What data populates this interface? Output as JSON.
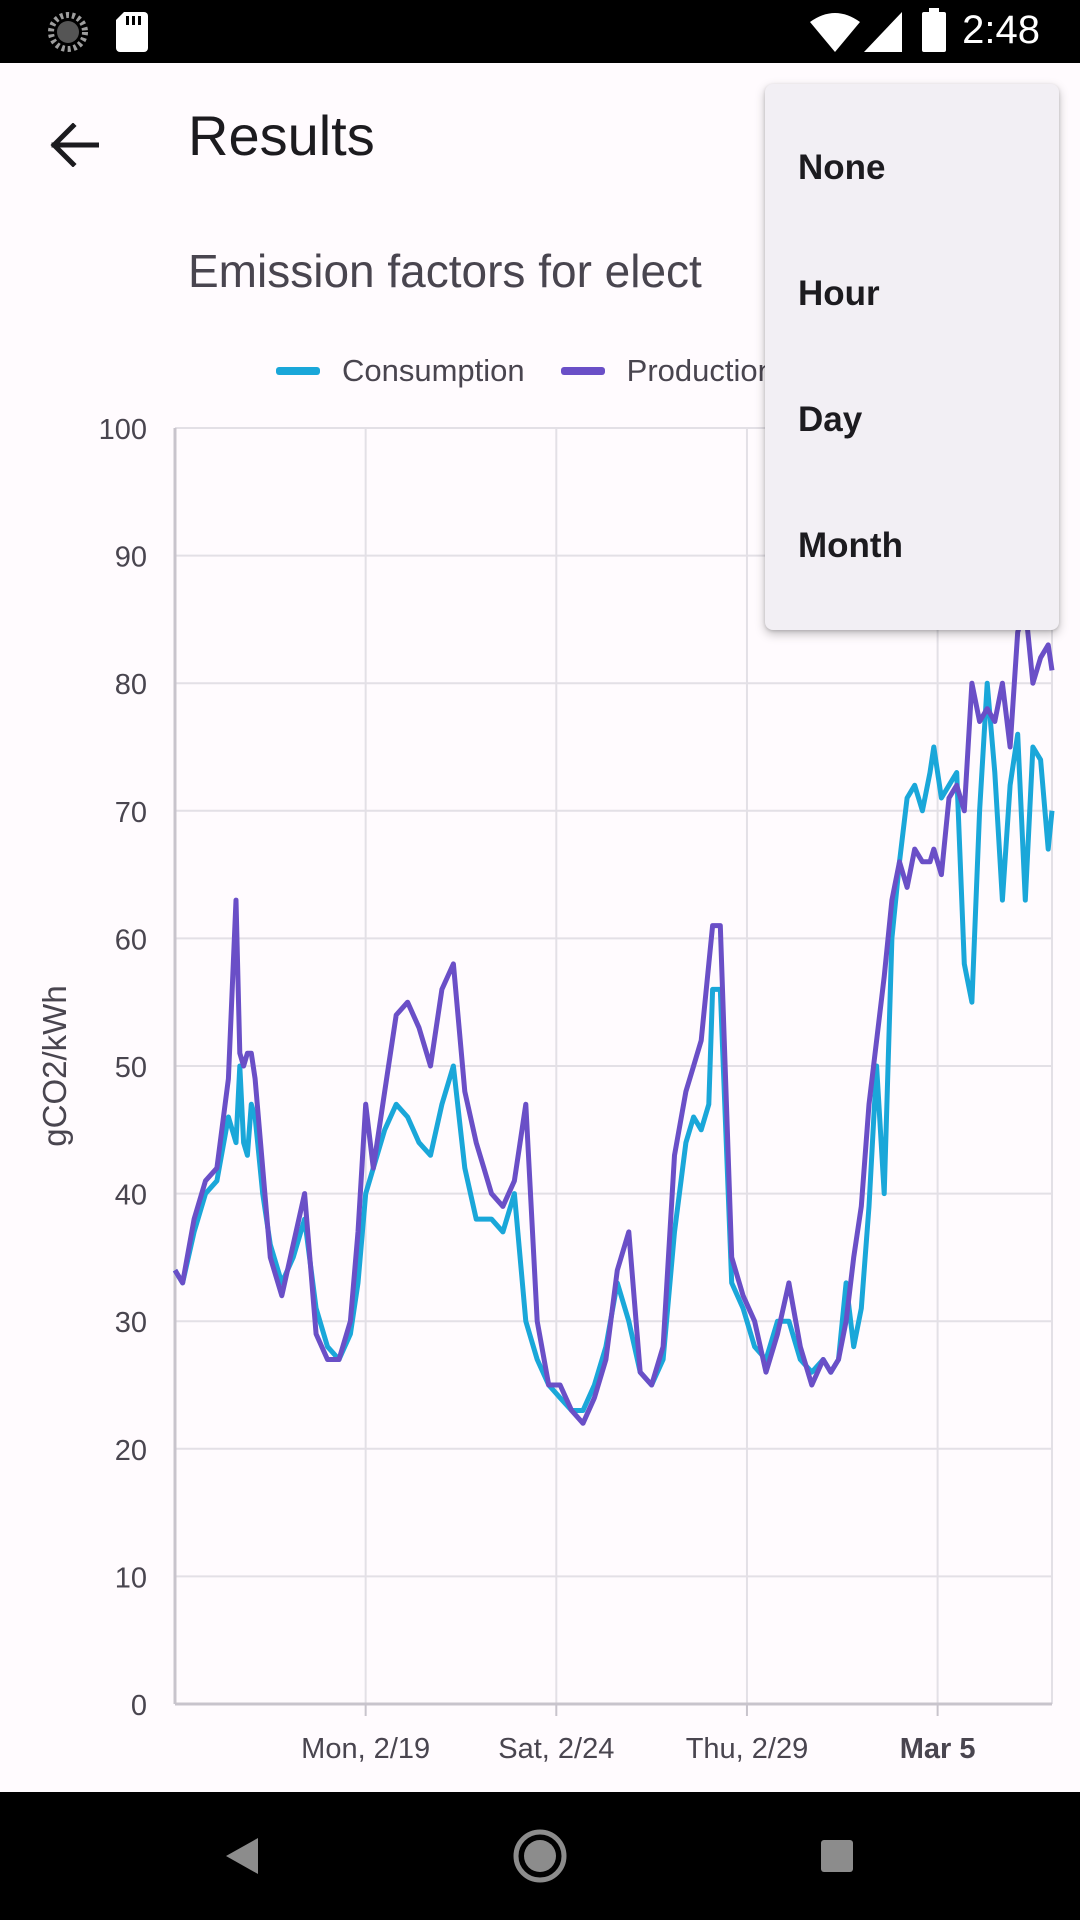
{
  "status_bar": {
    "time": "2:48",
    "icons": [
      "loading-icon",
      "sd-card-icon",
      "wifi-icon",
      "signal-icon",
      "battery-icon"
    ]
  },
  "app_bar": {
    "title": "Results",
    "back_icon": "arrow-back-icon"
  },
  "menu": {
    "items": [
      "None",
      "Hour",
      "Day",
      "Month"
    ]
  },
  "nav_bar": {
    "icons": [
      "back-triangle-icon",
      "home-circle-icon",
      "recents-square-icon"
    ]
  },
  "colors": {
    "consumption": "#1aa7d9",
    "production": "#6a4fc7",
    "grid": "#e3e0e6",
    "axis": "#c8c4cc"
  },
  "chart_data": {
    "type": "line",
    "title": "Emission factors for elect",
    "ylabel": "gCO2/kWh",
    "xlabel": "",
    "ylim": [
      0,
      100
    ],
    "y_ticks": [
      0,
      10,
      20,
      30,
      40,
      50,
      60,
      70,
      80,
      90,
      100
    ],
    "x_range_days": [
      -2.0,
      21.0
    ],
    "x_ticks": [
      {
        "label": "Mon, 2/19",
        "day": 3,
        "bold": false
      },
      {
        "label": "Sat, 2/24",
        "day": 8,
        "bold": false
      },
      {
        "label": "Thu, 2/29",
        "day": 13,
        "bold": false
      },
      {
        "label": "Mar 5",
        "day": 18,
        "bold": true
      }
    ],
    "grid": true,
    "legend_position": "top",
    "series": [
      {
        "name": "Consumption",
        "x": [
          -2.0,
          -1.8,
          -1.5,
          -1.2,
          -0.9,
          -0.6,
          -0.4,
          -0.3,
          -0.2,
          -0.1,
          0.0,
          0.1,
          0.3,
          0.5,
          0.8,
          1.1,
          1.4,
          1.7,
          2.0,
          2.3,
          2.6,
          2.8,
          3.0,
          3.2,
          3.5,
          3.8,
          4.1,
          4.4,
          4.7,
          5.0,
          5.3,
          5.6,
          5.9,
          6.1,
          6.3,
          6.6,
          6.9,
          7.2,
          7.5,
          7.8,
          8.1,
          8.4,
          8.7,
          9.0,
          9.3,
          9.6,
          9.9,
          10.2,
          10.5,
          10.8,
          11.1,
          11.4,
          11.6,
          11.8,
          12.0,
          12.1,
          12.3,
          12.6,
          12.9,
          13.2,
          13.5,
          13.8,
          14.1,
          14.4,
          14.7,
          15.0,
          15.2,
          15.4,
          15.6,
          15.8,
          16.0,
          16.2,
          16.4,
          16.6,
          16.8,
          17.0,
          17.2,
          17.4,
          17.6,
          17.8,
          17.9,
          18.1,
          18.3,
          18.5,
          18.7,
          18.9,
          19.1,
          19.3,
          19.5,
          19.7,
          19.9,
          20.1,
          20.3,
          20.5,
          20.7,
          20.9,
          21.0
        ],
        "y": [
          34,
          33,
          37,
          40,
          41,
          46,
          44,
          50,
          44,
          43,
          47,
          46,
          40,
          36,
          33,
          35,
          38,
          31,
          28,
          27,
          29,
          33,
          40,
          42,
          45,
          47,
          46,
          44,
          43,
          47,
          50,
          42,
          38,
          38,
          38,
          37,
          40,
          30,
          27,
          25,
          24,
          23,
          23,
          25,
          28,
          33,
          30,
          26,
          25,
          27,
          37,
          44,
          46,
          45,
          47,
          56,
          56,
          33,
          31,
          28,
          27,
          30,
          30,
          27,
          26,
          27,
          26,
          27,
          33,
          28,
          31,
          39,
          50,
          40,
          60,
          66,
          71,
          72,
          70,
          73,
          75,
          71,
          72,
          73,
          58,
          55,
          70,
          80,
          73,
          63,
          72,
          76,
          63,
          75,
          74,
          67,
          70
        ]
      },
      {
        "name": "Production",
        "x": [
          -2.0,
          -1.8,
          -1.5,
          -1.2,
          -0.9,
          -0.6,
          -0.4,
          -0.3,
          -0.2,
          -0.1,
          0.0,
          0.1,
          0.3,
          0.5,
          0.8,
          1.1,
          1.4,
          1.7,
          2.0,
          2.3,
          2.6,
          2.8,
          3.0,
          3.2,
          3.5,
          3.8,
          4.1,
          4.4,
          4.7,
          5.0,
          5.3,
          5.6,
          5.9,
          6.1,
          6.3,
          6.6,
          6.9,
          7.2,
          7.5,
          7.8,
          8.1,
          8.4,
          8.7,
          9.0,
          9.3,
          9.6,
          9.9,
          10.2,
          10.5,
          10.8,
          11.1,
          11.4,
          11.6,
          11.8,
          12.0,
          12.1,
          12.3,
          12.6,
          12.9,
          13.2,
          13.5,
          13.8,
          14.1,
          14.4,
          14.7,
          15.0,
          15.2,
          15.4,
          15.6,
          15.8,
          16.0,
          16.2,
          16.4,
          16.6,
          16.8,
          17.0,
          17.2,
          17.4,
          17.6,
          17.8,
          17.9,
          18.1,
          18.3,
          18.5,
          18.7,
          18.9,
          19.1,
          19.3,
          19.5,
          19.7,
          19.9,
          20.1,
          20.3,
          20.5,
          20.7,
          20.9,
          21.0
        ],
        "y": [
          34,
          33,
          38,
          41,
          42,
          49,
          63,
          51,
          50,
          51,
          51,
          49,
          42,
          35,
          32,
          36,
          40,
          29,
          27,
          27,
          30,
          37,
          47,
          42,
          48,
          54,
          55,
          53,
          50,
          56,
          58,
          48,
          44,
          42,
          40,
          39,
          41,
          47,
          30,
          25,
          25,
          23,
          22,
          24,
          27,
          34,
          37,
          26,
          25,
          28,
          43,
          48,
          50,
          52,
          58,
          61,
          61,
          35,
          32,
          30,
          26,
          29,
          33,
          28,
          25,
          27,
          26,
          27,
          30,
          35,
          39,
          47,
          52,
          57,
          63,
          66,
          64,
          67,
          66,
          66,
          67,
          65,
          71,
          72,
          70,
          80,
          77,
          78,
          77,
          80,
          75,
          84,
          86,
          80,
          82,
          83,
          81
        ]
      }
    ]
  }
}
